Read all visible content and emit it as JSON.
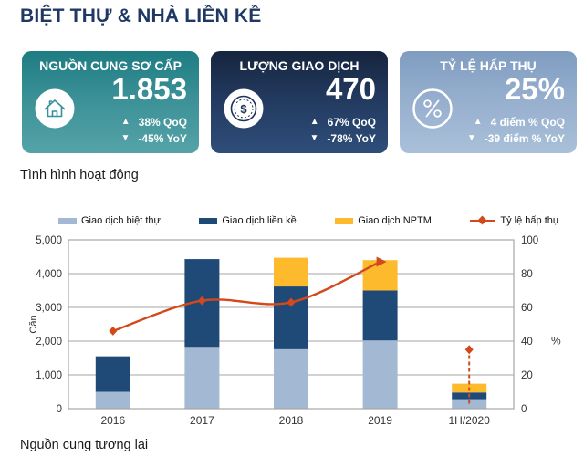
{
  "title": "BIỆT THỰ & NHÀ LIỀN KỀ",
  "cards": [
    {
      "title": "NGUỒN CUNG SƠ CẤP",
      "value": "1.853",
      "icon": "home-icon",
      "qoq": "38% QoQ",
      "yoy": "-45% YoY",
      "gradient": [
        "#1e7c83",
        "#55a3a8"
      ]
    },
    {
      "title": "LƯỢNG GIAO DỊCH",
      "value": "470",
      "icon": "coin-icon",
      "qoq": "67% QoQ",
      "yoy": "-78% YoY",
      "gradient": [
        "#16253e",
        "#2e4e7a"
      ]
    },
    {
      "title": "TỶ LỆ HẤP THỤ",
      "value": "25%",
      "icon": "percent-icon",
      "qoq": "4 điểm % QoQ",
      "yoy": "-39 điểm % YoY",
      "gradient": [
        "#7f9cc0",
        "#aac0d9"
      ]
    }
  ],
  "sections": {
    "activity": "Tình hình hoạt động",
    "future": "Nguồn cung tương lai"
  },
  "chart_data": {
    "type": "bar+line",
    "categories": [
      "2016",
      "2017",
      "2018",
      "2019",
      "1H/2020"
    ],
    "series": [
      {
        "name": "Giao dịch biệt thự",
        "type": "bar",
        "color": "#a3b8d3",
        "values": [
          500,
          1830,
          1760,
          2020,
          280
        ]
      },
      {
        "name": "Giao dịch liền kề",
        "type": "bar",
        "color": "#1f4a78",
        "values": [
          1050,
          2600,
          1860,
          1480,
          200
        ]
      },
      {
        "name": "Giao dịch NPTM",
        "type": "bar",
        "color": "#fcba2c",
        "values": [
          0,
          0,
          850,
          900,
          260
        ]
      },
      {
        "name": "Tỷ lệ hấp thụ",
        "type": "line",
        "color": "#d3491c",
        "axis": "right",
        "values": [
          46,
          64,
          63,
          87,
          null
        ],
        "dashed_point": {
          "category": "1H/2020",
          "value": 35
        }
      }
    ],
    "ylabel_left": "Căn",
    "ylabel_right": "%",
    "ylim_left": [
      0,
      5000
    ],
    "ylim_right": [
      0,
      100
    ],
    "yticks_left": [
      "0",
      "1,000",
      "2,000",
      "3,000",
      "4,000",
      "5,000"
    ],
    "yticks_right": [
      "0",
      "20",
      "40",
      "60",
      "80",
      "100"
    ],
    "grid": true,
    "legend_position": "top",
    "gridline_color": "#a6a6a6",
    "tick_color": "#333333"
  }
}
